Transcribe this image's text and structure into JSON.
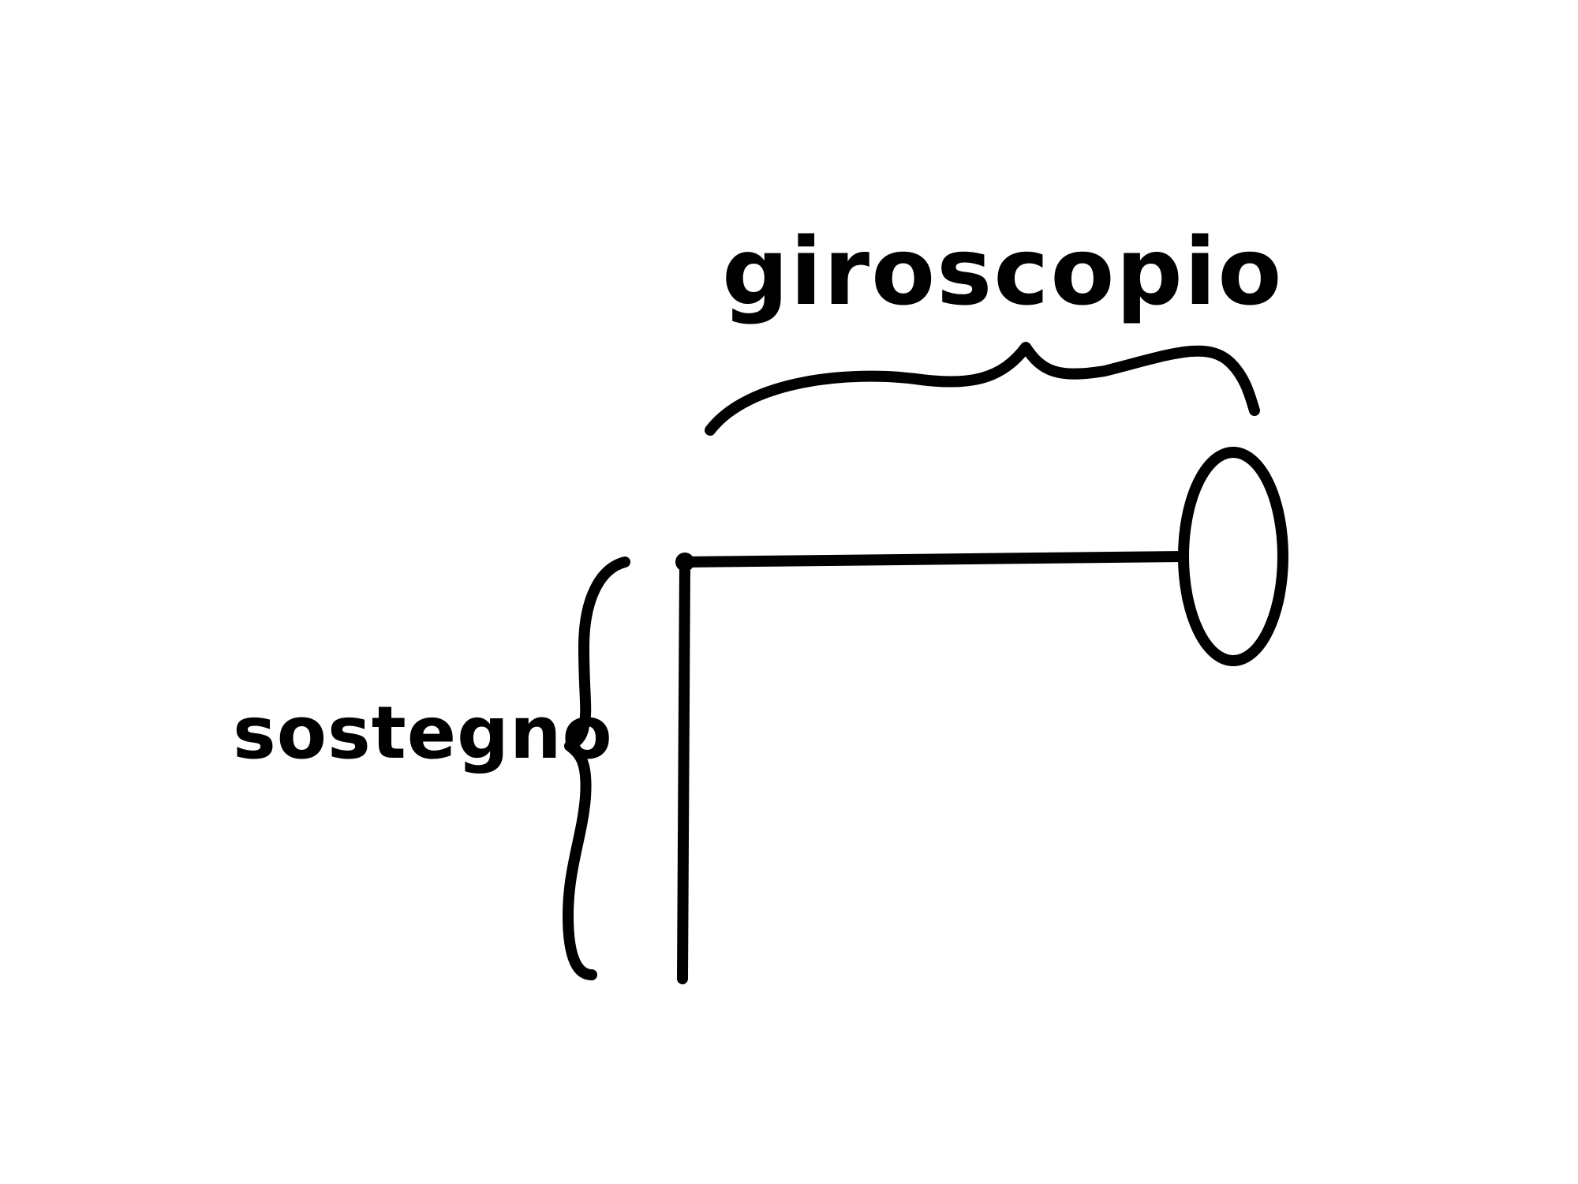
{
  "diagram": {
    "type": "hand-drawn sketch",
    "labels": {
      "top": "giroscopio",
      "left": "sostegno"
    },
    "components": [
      {
        "name": "giroscopio",
        "shape": "disc on horizontal rod"
      },
      {
        "name": "sostegno",
        "shape": "vertical post"
      }
    ],
    "colors": {
      "ink": "#000000",
      "background": "#ffffff"
    }
  }
}
